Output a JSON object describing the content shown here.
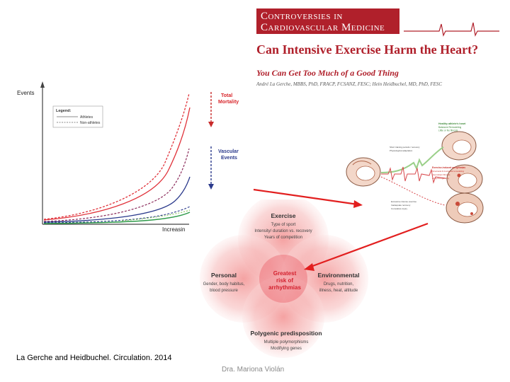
{
  "journal": {
    "banner_line1": "Controversies in",
    "banner_line2": "Cardiovascular Medicine"
  },
  "article": {
    "title": "Can Intensive Exercise Harm the Heart?",
    "subtitle": "You Can Get Too Much of a Good Thing",
    "authors": "André La Gerche, MBBS, PhD, FRACP, FCSANZ, FESC; Hein Heidbuchel, MD, PhD, FESC"
  },
  "risk_graph": {
    "y_label": "Events",
    "x_label": "Increasin",
    "legend_title": "Legend:",
    "legend_athletes": "Athletes",
    "legend_nonathletes": "Non-athletes",
    "label_total": "Total",
    "label_mortality": "Mortality",
    "label_vascular": "Vascular",
    "label_events": "Events",
    "colors": {
      "total": "#e0323a",
      "vascular": "#2b3a8c",
      "green": "#2e9a4a"
    }
  },
  "heart_figure": {
    "top_label_1": "Healthy athlete's heart",
    "top_label_2": "Balanced Remodeling",
    "top_label_3": "Little or No fibrosis",
    "left_label_1": "Short training periods / recovery",
    "left_label_2": "Physiological adaptation",
    "mid_label_1": "Exercise-induced arrhythmias",
    "mid_label_2": "Structural & functional remodeling",
    "mid_label_3": "Intermittent fibrosis",
    "mid_label_4": "Arrhythmogenicity",
    "bottom_label_1": "Excessive intense exercise",
    "bottom_label_2": "Inadequate recovery",
    "bottom_label_3": "Cumulative injury"
  },
  "venn": {
    "exercise_title": "Exercise",
    "exercise_lines": [
      "Type of sport",
      "Intensity/ duration vs. recovery",
      "Years of competition"
    ],
    "personal_title": "Personal",
    "personal_lines": [
      "Gender, body habitus,",
      "blood pressure"
    ],
    "environmental_title": "Environmental",
    "environmental_lines": [
      "Drugs, nutrition,",
      "illness, heat, altitude"
    ],
    "genetic_title": "Polygenic predisposition",
    "genetic_lines": [
      "Multiple polymorphisms",
      "Modifying genes"
    ],
    "center_lines": [
      "Greatest",
      "risk of",
      "arrhythmias"
    ]
  },
  "citation": "La Gerche and Heidbuchel. Circulation. 2014",
  "footer_author": "Dra. Mariona Violán"
}
